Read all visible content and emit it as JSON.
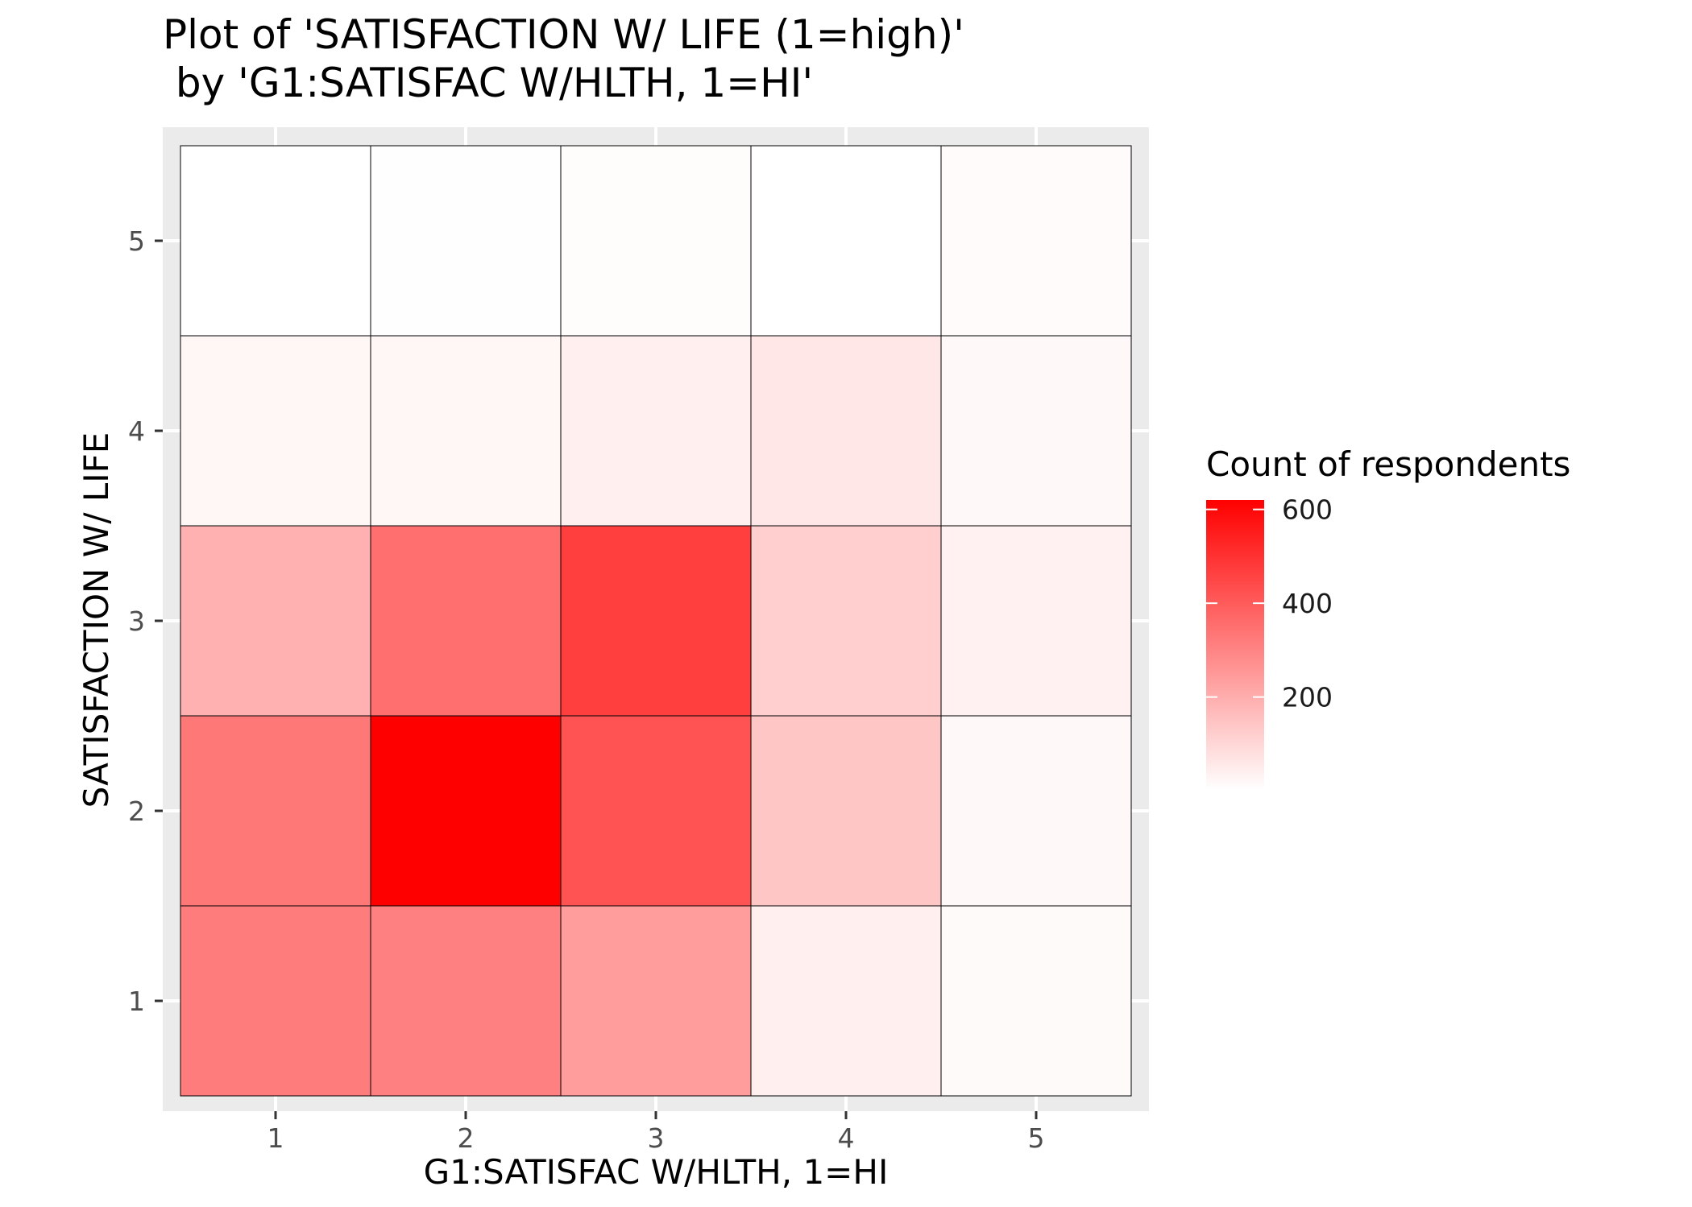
{
  "chart_data": {
    "type": "heatmap",
    "title_lines": [
      "Plot of 'SATISFACTION W/ LIFE (1=high)'",
      " by 'G1:SATISFAC W/HLTH, 1=HI'"
    ],
    "xlabel": "G1:SATISFAC W/HLTH, 1=HI",
    "ylabel": "SATISFACTION W/ LIFE",
    "x_categories": [
      "1",
      "2",
      "3",
      "4",
      "5"
    ],
    "y_categories": [
      "1",
      "2",
      "3",
      "4",
      "5"
    ],
    "cells": [
      {
        "x": "1",
        "y": "1",
        "value": 320
      },
      {
        "x": "2",
        "y": "1",
        "value": 310
      },
      {
        "x": "3",
        "y": "1",
        "value": 240
      },
      {
        "x": "4",
        "y": "1",
        "value": 40
      },
      {
        "x": "5",
        "y": "1",
        "value": 15
      },
      {
        "x": "1",
        "y": "2",
        "value": 330
      },
      {
        "x": "2",
        "y": "2",
        "value": 620
      },
      {
        "x": "3",
        "y": "2",
        "value": 420
      },
      {
        "x": "4",
        "y": "2",
        "value": 140
      },
      {
        "x": "5",
        "y": "2",
        "value": 20
      },
      {
        "x": "1",
        "y": "3",
        "value": 190
      },
      {
        "x": "2",
        "y": "3",
        "value": 350
      },
      {
        "x": "3",
        "y": "3",
        "value": 470
      },
      {
        "x": "4",
        "y": "3",
        "value": 120
      },
      {
        "x": "5",
        "y": "3",
        "value": 35
      },
      {
        "x": "1",
        "y": "4",
        "value": 25
      },
      {
        "x": "2",
        "y": "4",
        "value": 25
      },
      {
        "x": "3",
        "y": "4",
        "value": 40
      },
      {
        "x": "4",
        "y": "4",
        "value": 60
      },
      {
        "x": "5",
        "y": "4",
        "value": 20
      },
      {
        "x": "1",
        "y": "5",
        "value": 2
      },
      {
        "x": "2",
        "y": "5",
        "value": 5
      },
      {
        "x": "3",
        "y": "5",
        "value": 10
      },
      {
        "x": "4",
        "y": "5",
        "value": 2
      },
      {
        "x": "5",
        "y": "5",
        "value": 12
      }
    ],
    "color_scale": {
      "low": "#ffffff",
      "high": "#ff0000",
      "min": 2,
      "max": 620
    },
    "legend": {
      "title": "Count of respondents",
      "breaks": [
        200,
        400,
        600
      ],
      "labels": [
        "200",
        "400",
        "600"
      ],
      "position": "right"
    },
    "grid": true,
    "panel_background": "#ebebeb"
  }
}
